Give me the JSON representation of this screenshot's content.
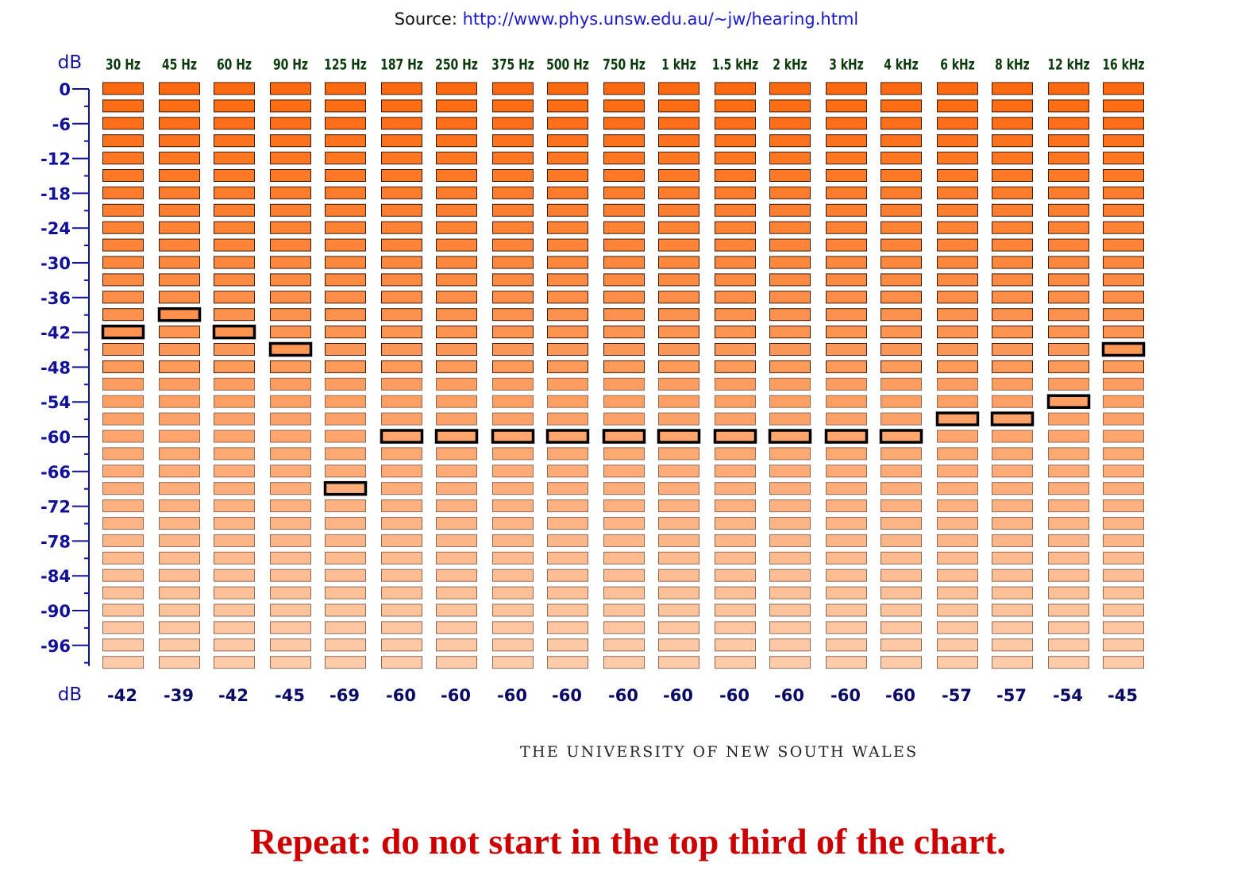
{
  "source": {
    "prefix": "Source: ",
    "url": "http://www.phys.unsw.edu.au/~jw/hearing.html"
  },
  "footer": {
    "university": "THE UNIVERSITY OF NEW SOUTH WALES",
    "reminder": "Repeat: do not start in the top third of the chart."
  },
  "chart_data": {
    "type": "table",
    "axis_unit": "dB",
    "y_ticks": [
      0,
      -6,
      -12,
      -18,
      -24,
      -30,
      -36,
      -42,
      -48,
      -54,
      -60,
      -66,
      -72,
      -78,
      -84,
      -90,
      -96
    ],
    "level_step_db": 3,
    "levels_db_range": [
      0,
      -99
    ],
    "categories": [
      "30 Hz",
      "45 Hz",
      "60 Hz",
      "90 Hz",
      "125 Hz",
      "187 Hz",
      "250 Hz",
      "375 Hz",
      "500 Hz",
      "750 Hz",
      "1 kHz",
      "1.5 kHz",
      "2 kHz",
      "3 kHz",
      "4 kHz",
      "6 kHz",
      "8 kHz",
      "12 kHz",
      "16 kHz"
    ],
    "values": [
      -42,
      -39,
      -42,
      -45,
      -69,
      -60,
      -60,
      -60,
      -60,
      -60,
      -60,
      -60,
      -60,
      -60,
      -60,
      -57,
      -57,
      -54,
      -45
    ],
    "colors": {
      "top": "#ff6a10",
      "bottom": "#ffccaa",
      "axis": "#101099",
      "freq_label": "#0a3a0a",
      "value_label": "#0a0a66",
      "selected_border": "#000000"
    }
  }
}
